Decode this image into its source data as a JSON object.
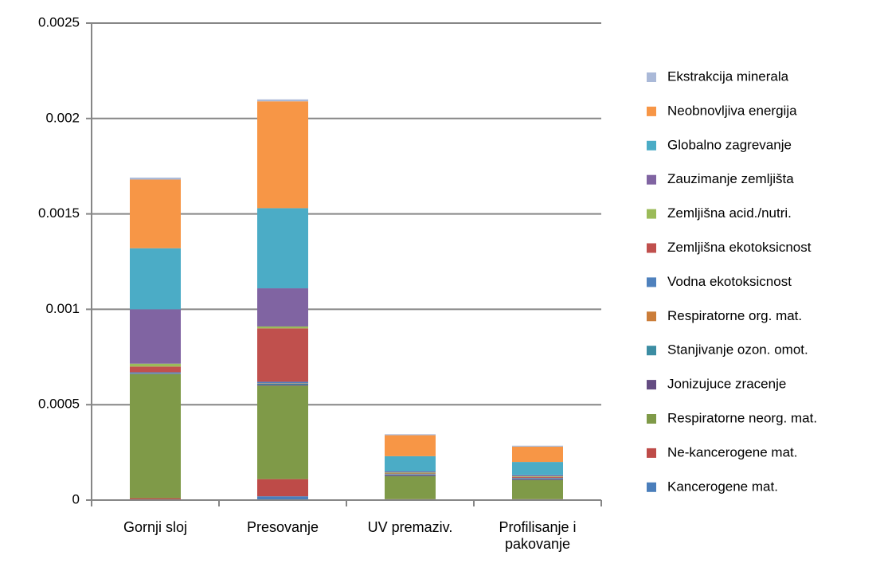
{
  "chart_data": {
    "type": "stacked_bar",
    "categories": [
      "Gornji sloj",
      "Presovanje",
      "UV premaziv.",
      "Profilisanje i pakovanje"
    ],
    "ylim": [
      0,
      0.0025
    ],
    "yticks": [
      0,
      0.0005,
      0.001,
      0.0015,
      0.002,
      0.0025
    ],
    "grid": true,
    "legend": "right",
    "series": [
      {
        "name": "Kancerogene mat.",
        "color": "#4a7ebb",
        "values": [
          2e-06,
          2e-05,
          2e-06,
          2e-06
        ]
      },
      {
        "name": "Ne-kancerogene mat.",
        "color": "#be4b48",
        "values": [
          8e-06,
          9e-05,
          3e-06,
          3e-06
        ]
      },
      {
        "name": "Respiratorne neorg. mat.",
        "color": "#7f9a48",
        "values": [
          0.00065,
          0.00049,
          0.00012,
          0.0001
        ]
      },
      {
        "name": "Jonizujuce zracenje",
        "color": "#644c82",
        "values": [
          2e-06,
          5e-06,
          5e-06,
          5e-06
        ]
      },
      {
        "name": "Stanjivanje ozon. omot.",
        "color": "#3c8da3",
        "values": [
          2e-06,
          5e-06,
          3e-06,
          3e-06
        ]
      },
      {
        "name": "Respiratorne org. mat.",
        "color": "#cb7d39",
        "values": [
          1e-06,
          2e-06,
          1e-06,
          1e-06
        ]
      },
      {
        "name": "Vodna ekotoksicnost",
        "color": "#4f81bd",
        "values": [
          5e-06,
          8e-06,
          3e-06,
          3e-06
        ]
      },
      {
        "name": "Zemljišna ekotoksicnost",
        "color": "#c0504d",
        "values": [
          3e-05,
          0.00028,
          3e-06,
          5e-06
        ]
      },
      {
        "name": "Zemljišna acid./nutri.",
        "color": "#9bbb59",
        "values": [
          1.5e-05,
          1e-05,
          5e-06,
          3e-06
        ]
      },
      {
        "name": "Zauzimanje zemljišta",
        "color": "#8064a2",
        "values": [
          0.000285,
          0.0002,
          5e-06,
          5e-06
        ]
      },
      {
        "name": "Globalno zagrevanje",
        "color": "#4bacc6",
        "values": [
          0.00032,
          0.00042,
          8e-05,
          7e-05
        ]
      },
      {
        "name": "Neobnovljiva energija",
        "color": "#f79646",
        "values": [
          0.00036,
          0.00056,
          0.00011,
          8e-05
        ]
      },
      {
        "name": "Ekstrakcija minerala",
        "color": "#aab9d8",
        "values": [
          1e-05,
          1e-05,
          5e-06,
          5e-06
        ]
      }
    ]
  }
}
